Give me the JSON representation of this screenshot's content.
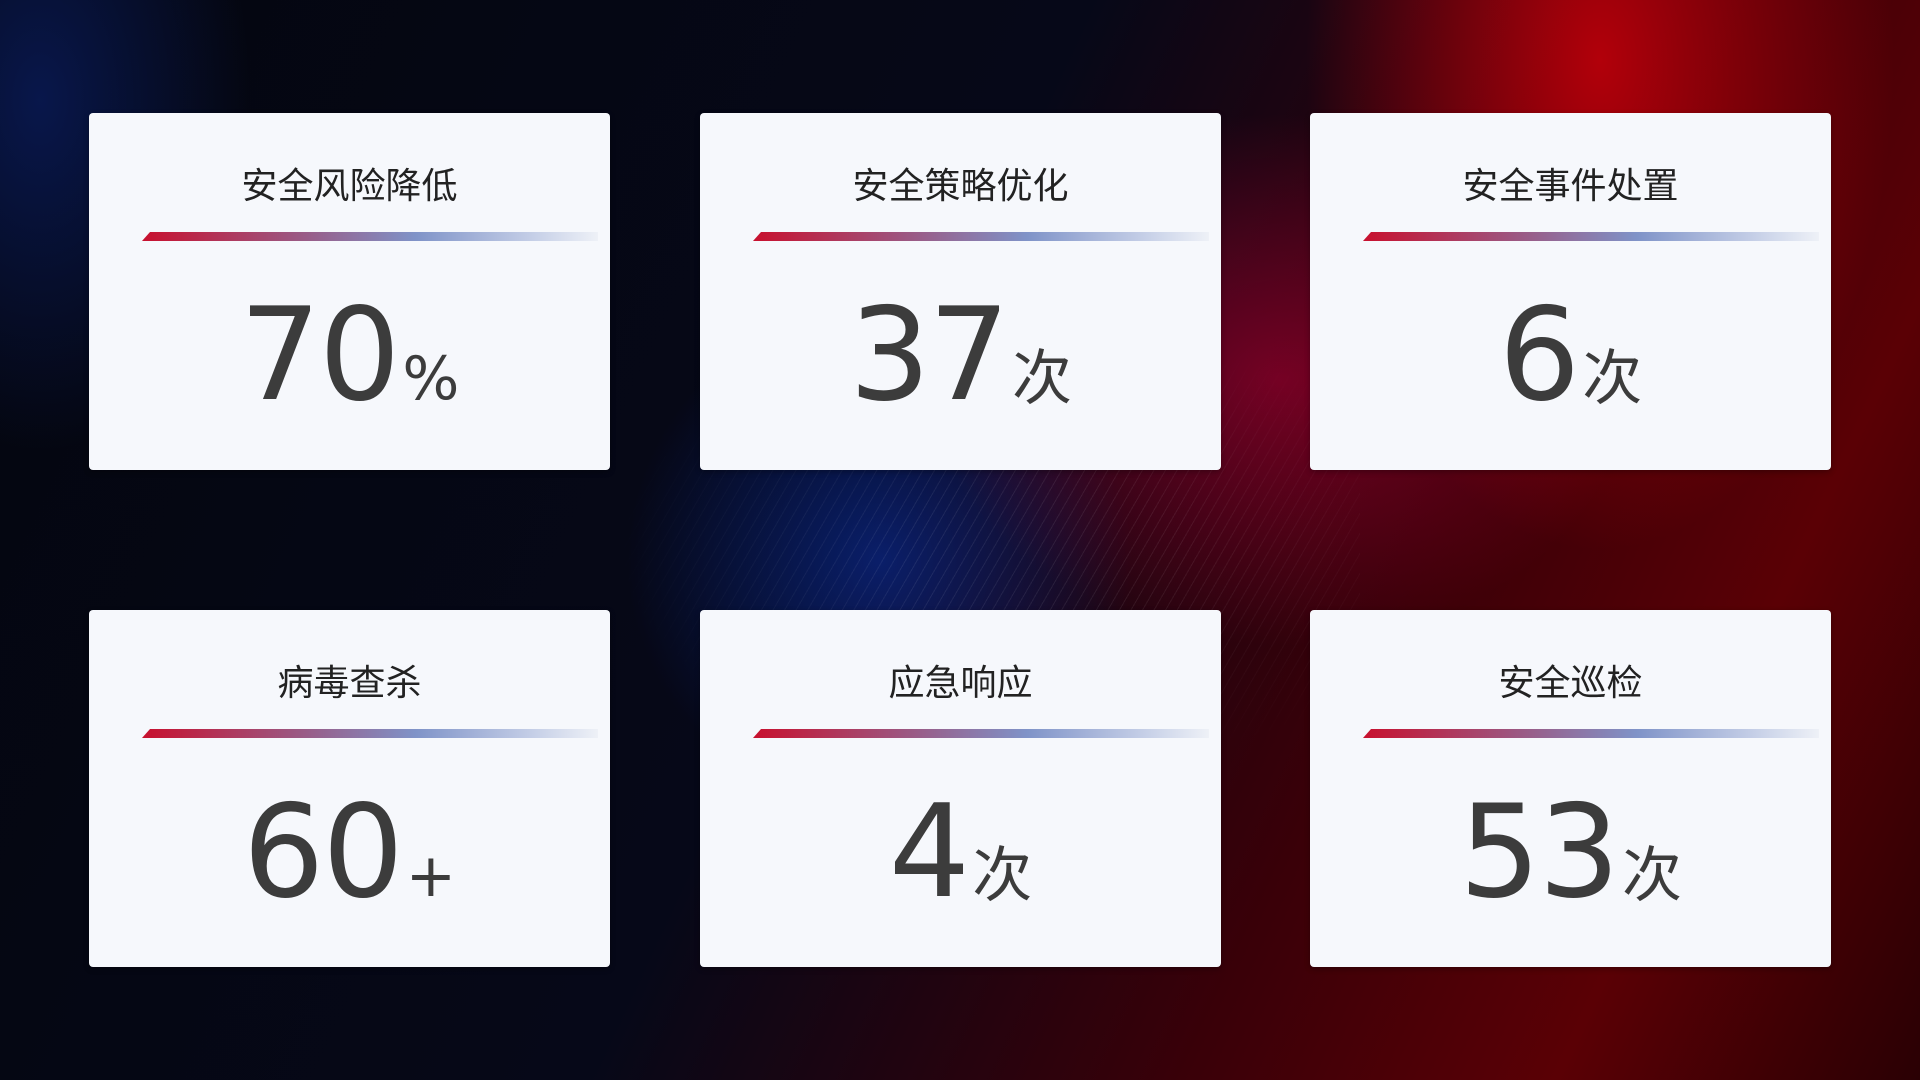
{
  "cards": [
    {
      "title": "安全风险降低",
      "value": "70",
      "unit": "%"
    },
    {
      "title": "安全策略优化",
      "value": "37",
      "unit": "次"
    },
    {
      "title": "安全事件处置",
      "value": "6",
      "unit": "次"
    },
    {
      "title": "病毒查杀",
      "value": "60",
      "unit": "+"
    },
    {
      "title": "应急响应",
      "value": "4",
      "unit": "次"
    },
    {
      "title": "安全巡检",
      "value": "53",
      "unit": "次"
    }
  ],
  "colors": {
    "accent_red": "#c8102e",
    "accent_blue": "#7f93c8",
    "card_bg": "#f6f8fc",
    "value_text": "#3c3c3c"
  }
}
